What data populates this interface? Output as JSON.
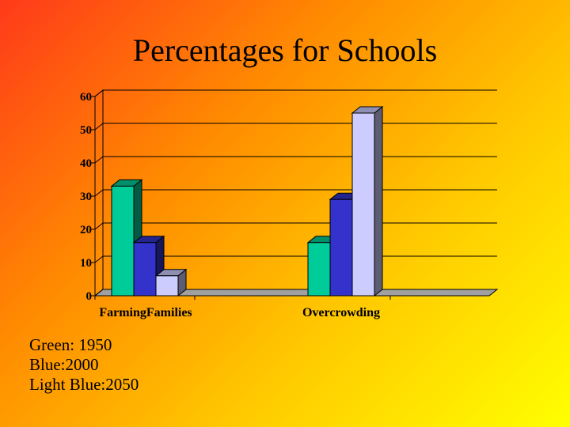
{
  "slide": {
    "title": "Percentages for Schools",
    "notes": [
      "Green: 1950",
      "Blue:2000",
      "Light Blue:2050"
    ]
  },
  "colors": {
    "series_1950": "#00cc99",
    "series_2000": "#3333cc",
    "series_2050": "#ccccff",
    "gridline": "#000000"
  },
  "chart_data": {
    "type": "bar",
    "title": "",
    "xlabel": "",
    "ylabel": "",
    "categories": [
      "FarmingFamilies",
      "Overcrowding"
    ],
    "series": [
      {
        "values": [
          33,
          16
        ]
      },
      {
        "values": [
          16,
          29
        ]
      },
      {
        "values": [
          6,
          55
        ]
      }
    ],
    "ylim": [
      0,
      60
    ],
    "yticks": [
      0,
      10,
      20,
      30,
      40,
      50,
      60
    ],
    "grid": true,
    "three_d": true,
    "legend": "none"
  }
}
